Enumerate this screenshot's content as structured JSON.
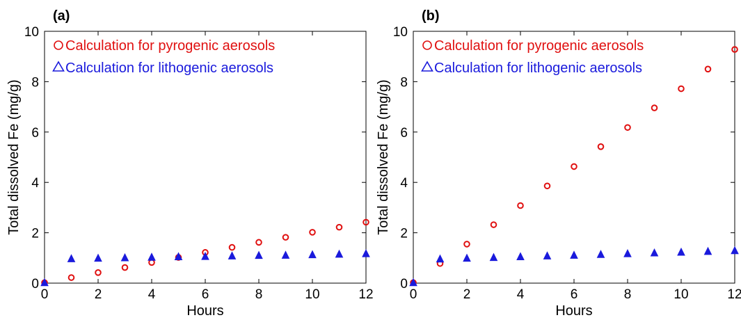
{
  "chart_data": [
    {
      "type": "scatter",
      "panel_label": "(a)",
      "xlabel": "Hours",
      "ylabel": "Total dissolved Fe (mg/g)",
      "xlim": [
        0,
        12
      ],
      "ylim": [
        0,
        10
      ],
      "xticks": [
        "0",
        "2",
        "4",
        "6",
        "8",
        "10",
        "12"
      ],
      "yticks": [
        "0",
        "2",
        "4",
        "6",
        "8",
        "10"
      ],
      "grid": false,
      "legend_position": "top-left",
      "series": [
        {
          "name": "Calculation for pyrogenic aerosols",
          "marker": "circle",
          "color": "#e01010",
          "x": [
            0,
            1,
            2,
            3,
            4,
            5,
            6,
            7,
            8,
            9,
            10,
            11,
            12
          ],
          "y": [
            0.02,
            0.22,
            0.42,
            0.62,
            0.82,
            1.02,
            1.22,
            1.42,
            1.62,
            1.82,
            2.02,
            2.22,
            2.42
          ]
        },
        {
          "name": "Calculation for lithogenic aerosols",
          "marker": "triangle",
          "color": "#1a1adc",
          "x": [
            0,
            1,
            2,
            3,
            4,
            5,
            6,
            7,
            8,
            9,
            10,
            11,
            12
          ],
          "y": [
            0.02,
            0.97,
            0.99,
            1.01,
            1.03,
            1.05,
            1.06,
            1.08,
            1.1,
            1.11,
            1.13,
            1.15,
            1.17
          ]
        }
      ]
    },
    {
      "type": "scatter",
      "panel_label": "(b)",
      "xlabel": "Hours",
      "ylabel": "Total dissolved Fe (mg/g)",
      "xlim": [
        0,
        12
      ],
      "ylim": [
        0,
        10
      ],
      "xticks": [
        "0",
        "2",
        "4",
        "6",
        "8",
        "10",
        "12"
      ],
      "yticks": [
        "0",
        "2",
        "4",
        "6",
        "8",
        "10"
      ],
      "grid": false,
      "legend_position": "top-left",
      "series": [
        {
          "name": "Calculation for pyrogenic aerosols",
          "marker": "circle",
          "color": "#e01010",
          "x": [
            0,
            1,
            2,
            3,
            4,
            5,
            6,
            7,
            8,
            9,
            10,
            11,
            12
          ],
          "y": [
            0.02,
            0.78,
            1.55,
            2.32,
            3.08,
            3.86,
            4.63,
            5.42,
            6.18,
            6.96,
            7.72,
            8.5,
            9.28
          ]
        },
        {
          "name": "Calculation for lithogenic aerosols",
          "marker": "triangle",
          "color": "#1a1adc",
          "x": [
            0,
            1,
            2,
            3,
            4,
            5,
            6,
            7,
            8,
            9,
            10,
            11,
            12
          ],
          "y": [
            0.02,
            0.96,
            0.99,
            1.02,
            1.05,
            1.08,
            1.11,
            1.14,
            1.17,
            1.2,
            1.23,
            1.26,
            1.29
          ]
        }
      ]
    }
  ]
}
